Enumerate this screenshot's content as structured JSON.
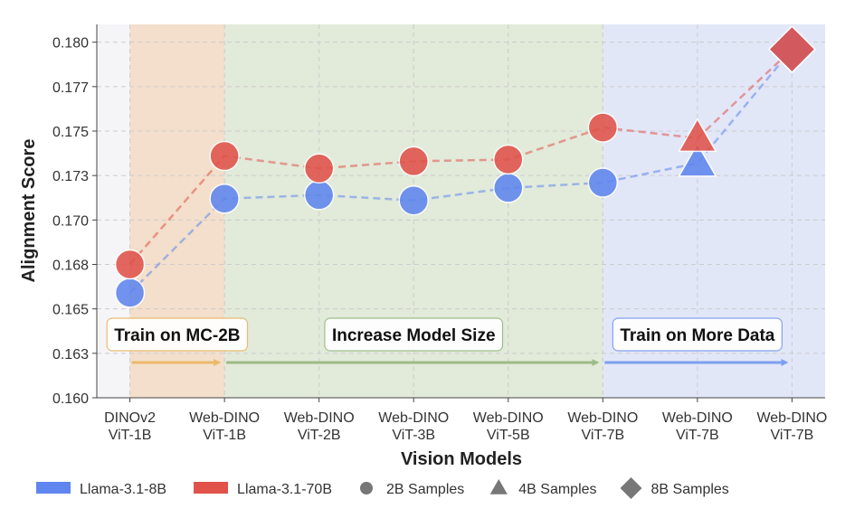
{
  "chart_data": {
    "type": "line",
    "x_label": "Vision Models",
    "y_label": "Alignment Score",
    "categories": [
      [
        "DINOv2",
        "ViT-1B"
      ],
      [
        "Web-DINO",
        "ViT-1B"
      ],
      [
        "Web-DINO",
        "ViT-2B"
      ],
      [
        "Web-DINO",
        "ViT-3B"
      ],
      [
        "Web-DINO",
        "ViT-5B"
      ],
      [
        "Web-DINO",
        "ViT-7B"
      ],
      [
        "Web-DINO",
        "ViT-7B"
      ],
      [
        "Web-DINO",
        "ViT-7B"
      ]
    ],
    "markers": [
      "circle",
      "circle",
      "circle",
      "circle",
      "circle",
      "circle",
      "triangle",
      "diamond"
    ],
    "series": [
      {
        "name": "Llama-3.1-8B",
        "color": "#5f86ee",
        "values": [
          0.1659,
          0.1712,
          0.1714,
          0.1711,
          0.1718,
          0.1721,
          0.1732,
          0.1796
        ]
      },
      {
        "name": "Llama-3.1-70B",
        "color": "#e0524a",
        "values": [
          0.1675,
          0.1736,
          0.1729,
          0.1733,
          0.1734,
          0.1752,
          0.1746,
          0.1796
        ]
      }
    ],
    "marker_legend": [
      {
        "label": "2B Samples",
        "marker": "circle"
      },
      {
        "label": "4B Samples",
        "marker": "triangle"
      },
      {
        "label": "8B Samples",
        "marker": "diamond"
      }
    ],
    "regions": [
      {
        "label": "Train on MC-2B",
        "start": 0,
        "end": 1,
        "color": "#f2d9bf",
        "arrow_color": "#ebb96a"
      },
      {
        "label": "Increase Model Size",
        "start": 1,
        "end": 5,
        "color": "#dde7d2",
        "arrow_color": "#9dbb84"
      },
      {
        "label": "Train on More Data",
        "start": 5,
        "end": 7,
        "color": "#dde3f7",
        "arrow_color": "#7f9ff0"
      }
    ],
    "xlim": [
      -0.35,
      7.35
    ],
    "ylim": [
      0.16,
      0.181
    ],
    "yticks": [
      {
        "value": 0.16,
        "label": "0.160"
      },
      {
        "value": 0.1625,
        "label": "0.163"
      },
      {
        "value": 0.165,
        "label": "0.165"
      },
      {
        "value": 0.1675,
        "label": "0.168"
      },
      {
        "value": 0.17,
        "label": "0.170"
      },
      {
        "value": 0.1725,
        "label": "0.173"
      },
      {
        "value": 0.175,
        "label": "0.175"
      },
      {
        "value": 0.1775,
        "label": "0.177"
      },
      {
        "value": 0.18,
        "label": "0.180"
      }
    ],
    "grid": true
  }
}
